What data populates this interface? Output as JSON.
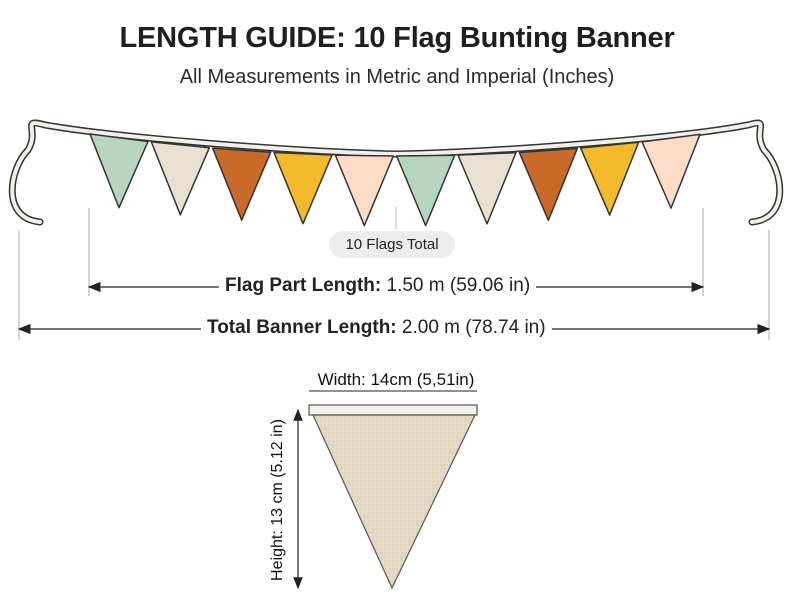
{
  "header": {
    "title": "LENGTH GUIDE: 10 Flag Bunting Banner",
    "subtitle": "All Measurements in Metric and Imperial (Inches)"
  },
  "banner": {
    "badge": "10 Flags Total",
    "flag_colors": [
      "#b7d5c3",
      "#e8e1d2",
      "#c9692a",
      "#f2b92b",
      "#fcdcc6",
      "#b7d5c3",
      "#e8e1d2",
      "#c9692a",
      "#f2b92b",
      "#fcdcc6"
    ],
    "flag_part": {
      "label": "Flag Part Length:",
      "value": "1.50 m (59.06 in)"
    },
    "total": {
      "label": "Total Banner Length:",
      "value": "2.00 m (78.74 in)"
    }
  },
  "flag_detail": {
    "width_label": "Width: 14cm (5,51in)",
    "height_label": "Height: 13 cm (5.12 in)",
    "fabric_color": "#e6dcc8"
  }
}
